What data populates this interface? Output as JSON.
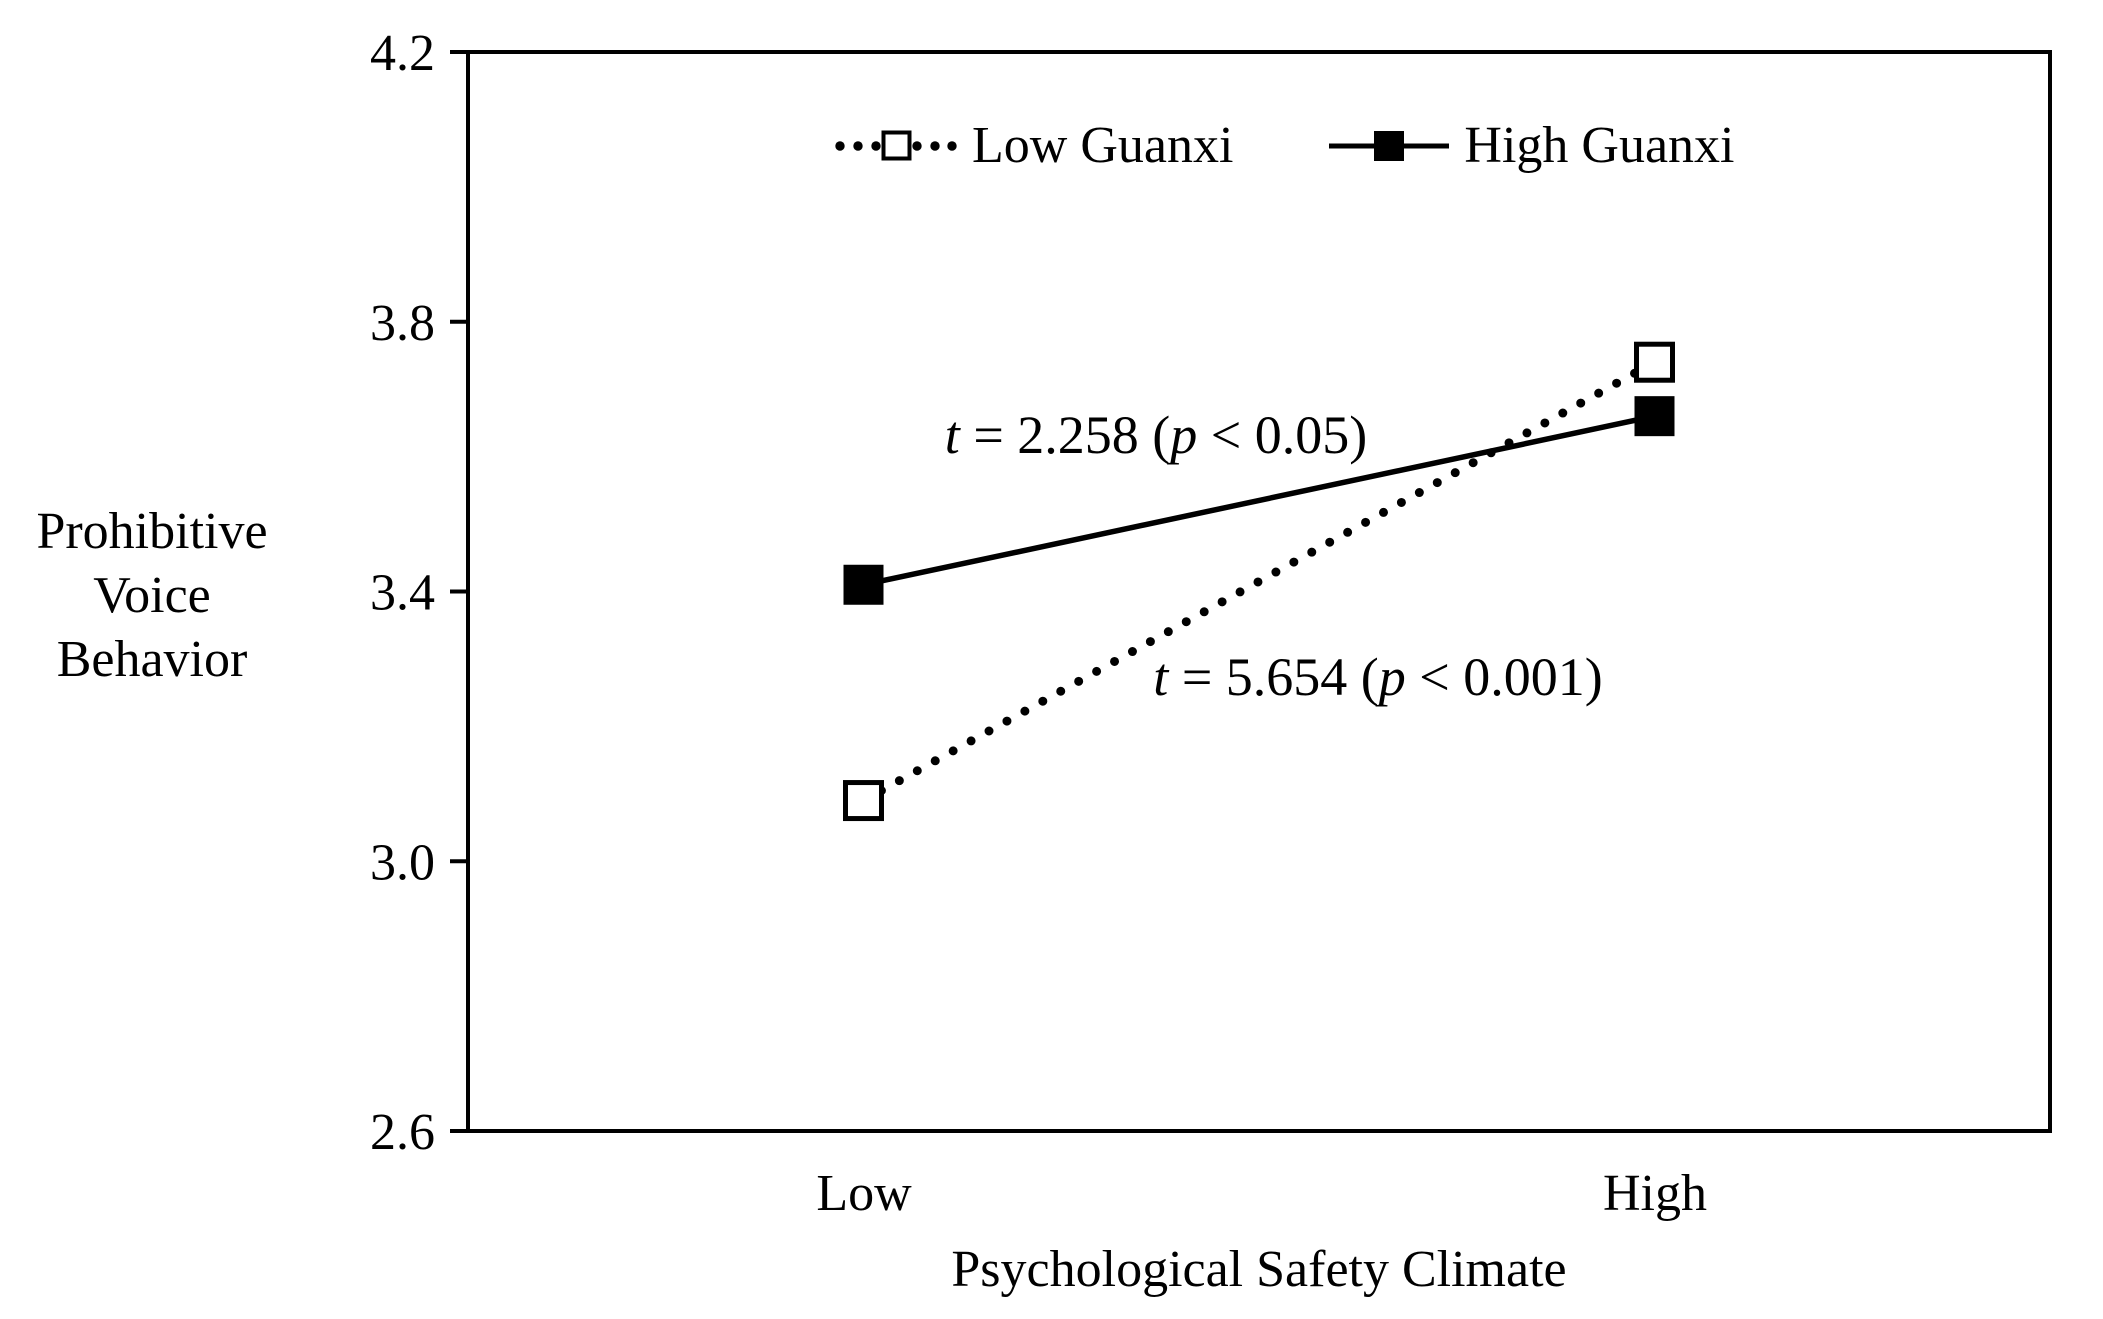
{
  "figure": {
    "background_color": "#ffffff",
    "ink_color": "#000000"
  },
  "chart_data": {
    "type": "line",
    "title": "",
    "categories": [
      "Low",
      "High"
    ],
    "series": [
      {
        "name": "Low Guanxi",
        "values": [
          3.09,
          3.74
        ],
        "line_style": "dotted",
        "marker": "open-square",
        "color": "#000000"
      },
      {
        "name": "High Guanxi",
        "values": [
          3.41,
          3.66
        ],
        "line_style": "solid",
        "marker": "filled-square",
        "color": "#000000"
      }
    ],
    "xlabel": "Psychological Safety Climate",
    "ylabel": "Prohibitive Voice Behavior",
    "ylabel_lines": [
      "Prohibitive",
      "Voice",
      "Behavior"
    ],
    "ylim": [
      2.6,
      4.2
    ],
    "yticks": [
      4.2,
      3.8,
      3.4,
      3.0,
      2.6
    ],
    "ytick_labels": [
      "4.2",
      "3.8",
      "3.4",
      "3.0",
      "2.6"
    ],
    "grid": false,
    "legend_position": "top-center-inside",
    "annotations": [
      {
        "text": "t = 2.258 (p < 0.05)",
        "segments": [
          {
            "text": "t",
            "italic": true
          },
          {
            "text": " = 2.258 (",
            "italic": false
          },
          {
            "text": "p",
            "italic": true
          },
          {
            "text": " < 0.05)",
            "italic": false
          }
        ]
      },
      {
        "text": "t = 5.654 (p < 0.001)",
        "segments": [
          {
            "text": "t",
            "italic": true
          },
          {
            "text": " = 5.654 (",
            "italic": false
          },
          {
            "text": "p",
            "italic": true
          },
          {
            "text": " < 0.001)",
            "italic": false
          }
        ]
      }
    ]
  }
}
